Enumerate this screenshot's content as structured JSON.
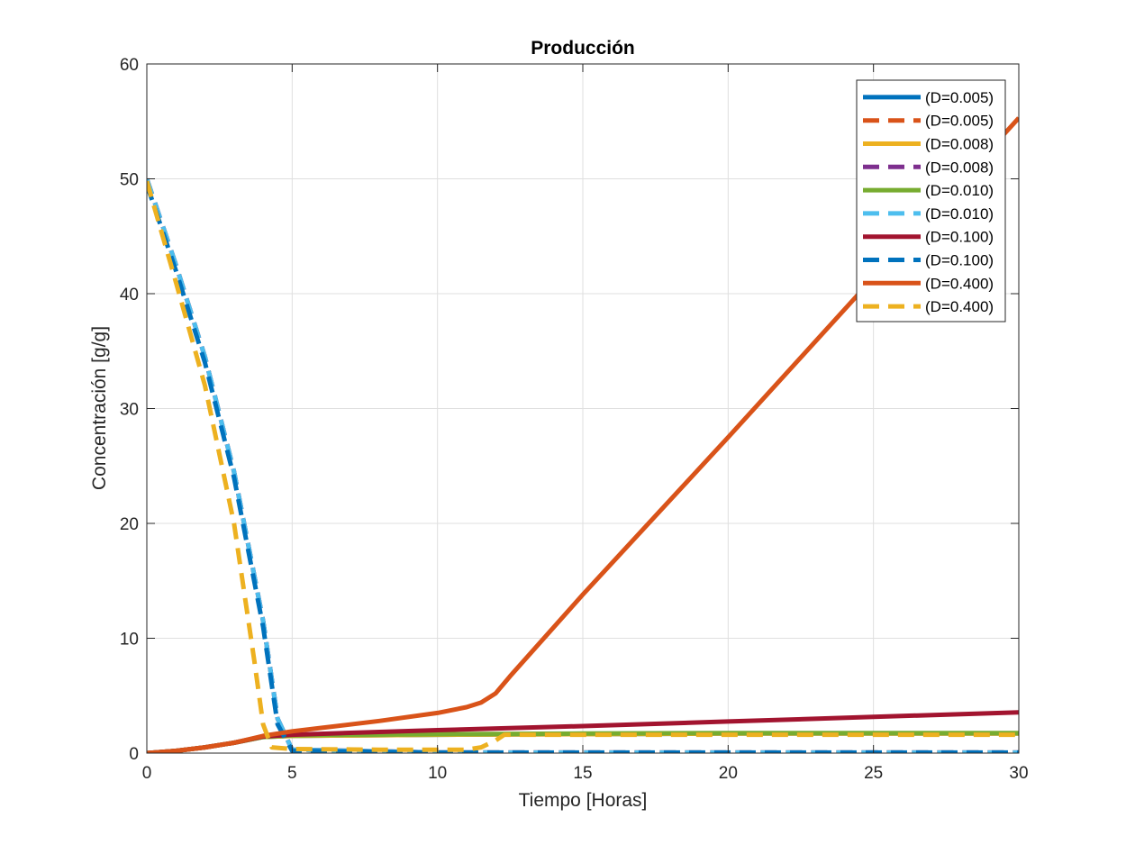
{
  "chart_data": {
    "type": "line",
    "title": "Producción",
    "xlabel": "Tiempo [Horas]",
    "ylabel": "Concentración [g/g]",
    "xlim": [
      0,
      30
    ],
    "ylim": [
      0,
      60
    ],
    "xticks": [
      0,
      5,
      10,
      15,
      20,
      25,
      30
    ],
    "yticks": [
      0,
      10,
      20,
      30,
      40,
      50,
      60
    ],
    "grid": true,
    "legend_position": "top-right",
    "series": [
      {
        "name": "(D=0.005)",
        "color": "#0072BD",
        "dash": "solid",
        "x": [
          0,
          1,
          2,
          3,
          4,
          5,
          10,
          15,
          20,
          25,
          30
        ],
        "y": [
          0,
          0.2,
          0.5,
          0.9,
          1.4,
          1.5,
          1.6,
          1.65,
          1.7,
          1.7,
          1.7
        ]
      },
      {
        "name": "(D=0.005)",
        "color": "#D95319",
        "dash": "dashed",
        "x": [
          0,
          1,
          2,
          3,
          4,
          4.5,
          5,
          10,
          15,
          20,
          25,
          30
        ],
        "y": [
          50,
          42.5,
          34.5,
          24.5,
          11.5,
          3.0,
          0.3,
          0.05,
          0.05,
          0.05,
          0.05,
          0.05
        ]
      },
      {
        "name": "(D=0.008)",
        "color": "#EDB120",
        "dash": "solid",
        "x": [
          0,
          1,
          2,
          3,
          4,
          5,
          10,
          15,
          20,
          25,
          30
        ],
        "y": [
          0,
          0.2,
          0.5,
          0.9,
          1.4,
          1.5,
          1.6,
          1.65,
          1.7,
          1.7,
          1.7
        ]
      },
      {
        "name": "(D=0.008)",
        "color": "#7E2F8E",
        "dash": "dashed",
        "x": [
          0,
          1,
          2,
          3,
          4,
          4.5,
          5,
          10,
          15,
          20,
          25,
          30
        ],
        "y": [
          50,
          42.5,
          34.5,
          24.5,
          11.5,
          3.0,
          0.3,
          0.05,
          0.05,
          0.05,
          0.05,
          0.05
        ]
      },
      {
        "name": "(D=0.010)",
        "color": "#77AC30",
        "dash": "solid",
        "x": [
          0,
          1,
          2,
          3,
          4,
          5,
          10,
          15,
          20,
          25,
          30
        ],
        "y": [
          0,
          0.2,
          0.5,
          0.9,
          1.4,
          1.55,
          1.65,
          1.7,
          1.75,
          1.75,
          1.75
        ]
      },
      {
        "name": "(D=0.010)",
        "color": "#4DBEEE",
        "dash": "dashed",
        "x": [
          0,
          1,
          2,
          3,
          4,
          4.5,
          5,
          10,
          15,
          20,
          25,
          30
        ],
        "y": [
          50,
          42.5,
          34.5,
          24.5,
          11.5,
          3.0,
          0.3,
          0.05,
          0.05,
          0.05,
          0.05,
          0.05
        ]
      },
      {
        "name": "(D=0.100)",
        "color": "#A2142F",
        "dash": "solid",
        "x": [
          0,
          1,
          2,
          3,
          4,
          5,
          10,
          15,
          20,
          25,
          30
        ],
        "y": [
          0,
          0.2,
          0.5,
          0.9,
          1.45,
          1.6,
          2.0,
          2.35,
          2.75,
          3.15,
          3.55
        ]
      },
      {
        "name": "(D=0.100)",
        "color": "#0072BD",
        "dash": "dashed",
        "x": [
          0,
          1,
          2,
          3,
          4,
          4.5,
          5,
          10,
          15,
          20,
          25,
          30
        ],
        "y": [
          49.5,
          42,
          34,
          24,
          11,
          2.5,
          0.2,
          0.05,
          0.05,
          0.05,
          0.05,
          0.05
        ]
      },
      {
        "name": "(D=0.400)",
        "color": "#D95319",
        "dash": "solid",
        "x": [
          0,
          1,
          2,
          3,
          4,
          5,
          6,
          8,
          10,
          11,
          11.5,
          12,
          12.5,
          15,
          20,
          25,
          30
        ],
        "y": [
          0,
          0.2,
          0.5,
          0.9,
          1.5,
          1.9,
          2.2,
          2.8,
          3.5,
          4.0,
          4.4,
          5.2,
          6.7,
          13.8,
          27.5,
          41.4,
          55.3
        ]
      },
      {
        "name": "(D=0.400)",
        "color": "#EDB120",
        "dash": "dashed",
        "x": [
          0,
          1,
          2,
          3,
          3.7,
          4.0,
          4.3,
          5,
          8,
          11,
          11.5,
          12,
          12.3,
          15,
          20,
          25,
          30
        ],
        "y": [
          49.8,
          41,
          32,
          20,
          8,
          2.5,
          0.5,
          0.35,
          0.3,
          0.3,
          0.5,
          1.1,
          1.6,
          1.6,
          1.6,
          1.6,
          1.6
        ]
      }
    ]
  }
}
